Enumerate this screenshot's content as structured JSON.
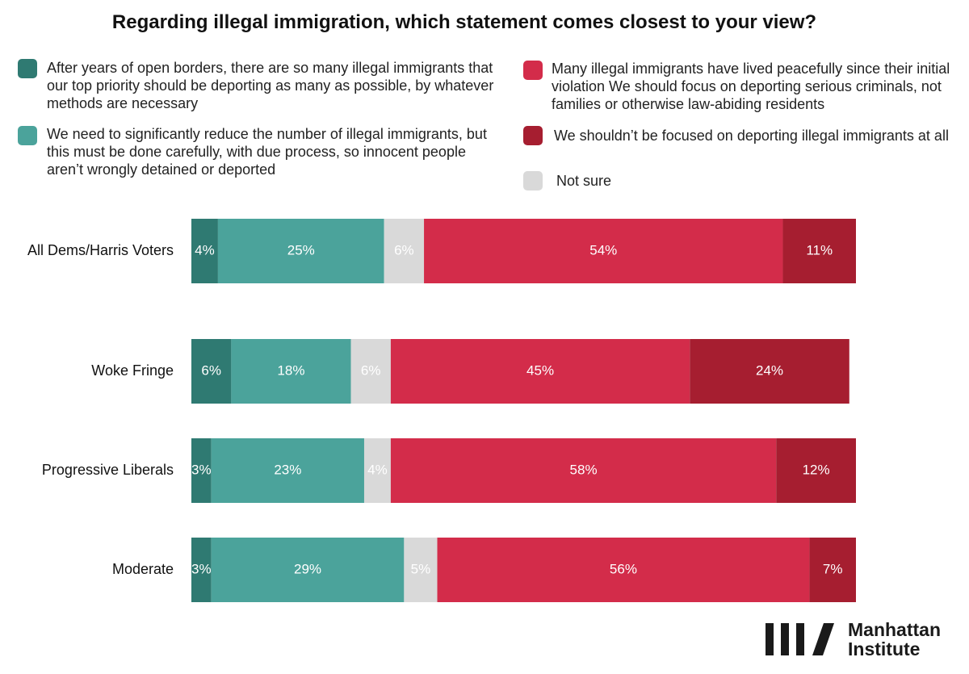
{
  "chart_data": {
    "type": "stacked_bar_horizontal",
    "title": "Regarding illegal immigration, which statement comes closest to your view?",
    "categories": [
      "All Dems/Harris Voters",
      "Woke Fringe",
      "Progressive Liberals",
      "Moderate"
    ],
    "xlim": [
      0,
      100
    ],
    "series": [
      {
        "name": "After years of open borders, there are so many illegal immigrants that our top priority should be deporting as many as possible, by whatever methods are necessary",
        "color": "#2f7a72",
        "values": [
          4,
          6,
          3,
          3
        ],
        "value_labels": [
          "4%",
          "6%",
          "3%",
          "3%"
        ]
      },
      {
        "name": "We need to significantly reduce the number of illegal immigrants, but this must be done carefully, with due process, so innocent people aren’t wrongly detained or deported",
        "color": "#4ba39b",
        "values": [
          25,
          18,
          23,
          29
        ],
        "value_labels": [
          "25%",
          "18%",
          "23%",
          "29%"
        ]
      },
      {
        "name": "Not sure",
        "color": "#d9d9d9",
        "values": [
          6,
          6,
          4,
          5
        ],
        "value_labels": [
          "6%",
          "6%",
          "4%",
          "5%"
        ]
      },
      {
        "name": "Many illegal immigrants have lived peacefully since their initial violation  We should focus on deporting serious criminals, not families or otherwise law-abiding residents",
        "color": "#d32c4a",
        "values": [
          54,
          45,
          58,
          56
        ],
        "value_labels": [
          "54%",
          "45%",
          "58%",
          "56%"
        ]
      },
      {
        "name": "We shouldn’t be focused on deporting illegal immigrants at all",
        "color": "#a61e30",
        "values": [
          11,
          24,
          12,
          7
        ],
        "value_labels": [
          "11%",
          "24%",
          "12%",
          "7%"
        ]
      }
    ]
  },
  "logo": {
    "lines": [
      "Manhattan",
      "Institute"
    ]
  }
}
